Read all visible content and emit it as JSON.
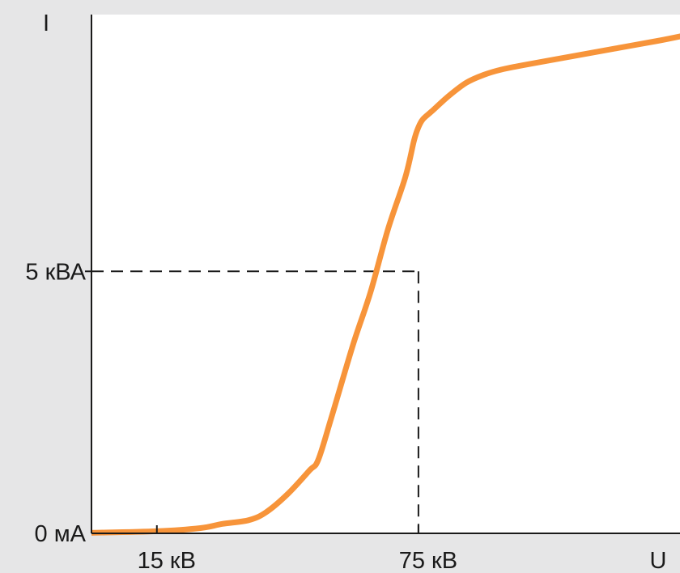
{
  "chart_data": {
    "type": "line",
    "title": "",
    "ylabel": "I",
    "xlabel": "U",
    "x_ticks": [
      {
        "value": 15,
        "label": "15 кВ"
      },
      {
        "value": 75,
        "label": "75 кВ"
      }
    ],
    "y_ticks": [
      {
        "value": 0,
        "label": "0 мА"
      },
      {
        "value": 5,
        "label": "5 кВА"
      }
    ],
    "xlim": [
      0,
      135
    ],
    "ylim": [
      0,
      9.9
    ],
    "grid": false,
    "reference_lines": [
      {
        "x": 75,
        "y": 5,
        "style": "dashed"
      }
    ],
    "series": [
      {
        "color": "#f7943a",
        "x": [
          0,
          15,
          25,
          30,
          36,
          40,
          45,
          50,
          52,
          55,
          60,
          64,
          68,
          72,
          74,
          75,
          76,
          78,
          82,
          86,
          90,
          94,
          100,
          110,
          120,
          130,
          136
        ],
        "y": [
          0.01,
          0.04,
          0.1,
          0.18,
          0.25,
          0.4,
          0.75,
          1.2,
          1.4,
          2.2,
          3.6,
          4.6,
          5.8,
          6.8,
          7.5,
          7.75,
          7.9,
          8.05,
          8.35,
          8.6,
          8.75,
          8.85,
          8.95,
          9.1,
          9.25,
          9.4,
          9.5
        ]
      }
    ]
  }
}
